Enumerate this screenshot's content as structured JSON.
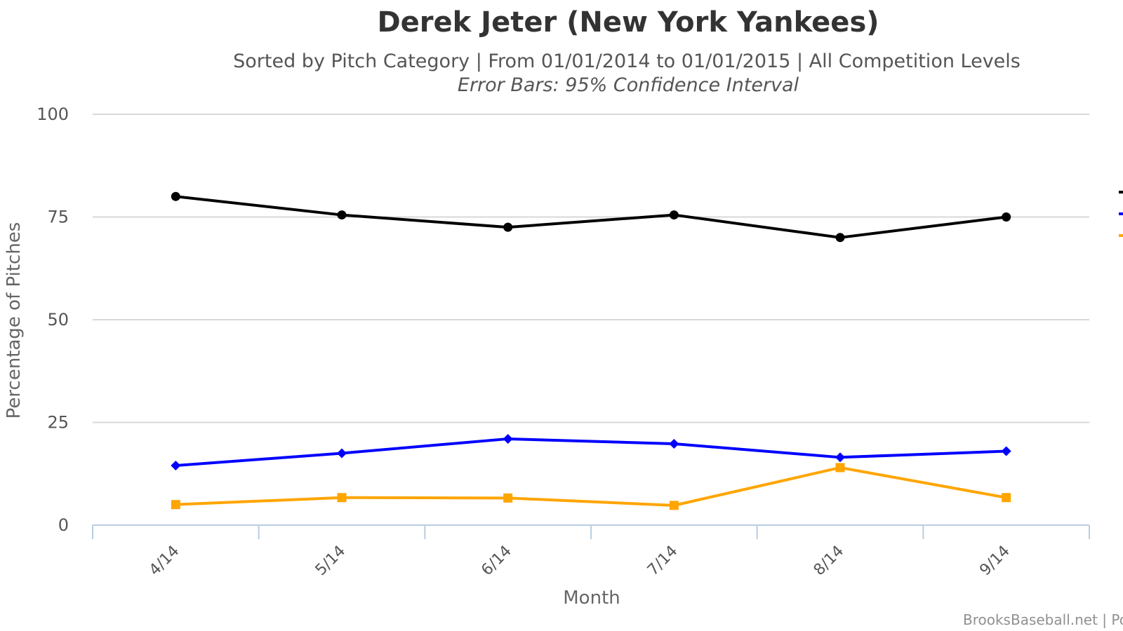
{
  "chart_data": {
    "type": "line",
    "title": "Derek Jeter (New York Yankees)",
    "subtitle": "Sorted by Pitch Category | From 01/01/2014 to 01/01/2015 | All Competition Levels",
    "note": "Error Bars: 95% Confidence Interval",
    "xlabel": "Month",
    "ylabel": "Percentage of Pitches",
    "categories": [
      "4/14",
      "5/14",
      "6/14",
      "7/14",
      "8/14",
      "9/14"
    ],
    "yticks": [
      "0",
      "25",
      "50",
      "75",
      "100"
    ],
    "ylim": [
      0,
      100
    ],
    "grid": true,
    "legend_placement": "right (clipped)",
    "credit": "BrooksBaseball.net | Po",
    "series": [
      {
        "color": "#000000",
        "marker": "circle",
        "values": [
          80,
          75.5,
          72.5,
          75.5,
          70,
          75
        ]
      },
      {
        "color": "#0000ff",
        "marker": "diamond",
        "values": [
          14.5,
          17.5,
          21,
          19.8,
          16.5,
          18
        ]
      },
      {
        "color": "#ffa500",
        "marker": "square",
        "values": [
          5,
          6.7,
          6.6,
          4.8,
          14,
          6.7
        ]
      }
    ]
  }
}
